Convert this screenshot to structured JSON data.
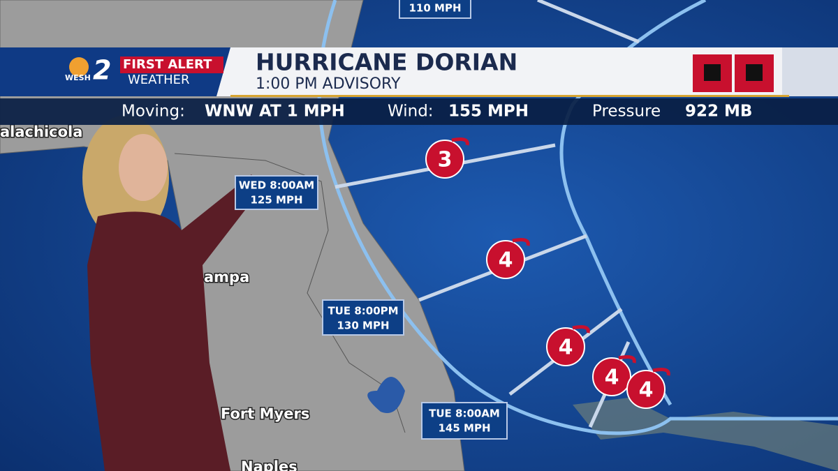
{
  "logo": {
    "station": "WESH",
    "channel": "2",
    "line1": "FIRST ALERT",
    "line2": "WEATHER"
  },
  "header": {
    "title": "HURRICANE DORIAN",
    "subtitle": "1:00 PM ADVISORY"
  },
  "ticker": {
    "moving_label": "Moving:",
    "moving_value": "WNW AT 1 MPH",
    "wind_label": "Wind:",
    "wind_value": "155 MPH",
    "pressure_label": "Pressure",
    "pressure_value": "922 MB"
  },
  "cities": [
    "alachicola",
    "ampa",
    "Fort Myers",
    "Naples"
  ],
  "forecast_boxes": [
    {
      "time": null,
      "speed": "110 MPH"
    },
    {
      "time": "WED 8:00AM",
      "speed": "125 MPH"
    },
    {
      "time": "TUE 8:00PM",
      "speed": "130 MPH"
    },
    {
      "time": "TUE 8:00AM",
      "speed": "145 MPH"
    }
  ],
  "storm_icons": [
    3,
    4,
    4,
    4,
    4
  ]
}
